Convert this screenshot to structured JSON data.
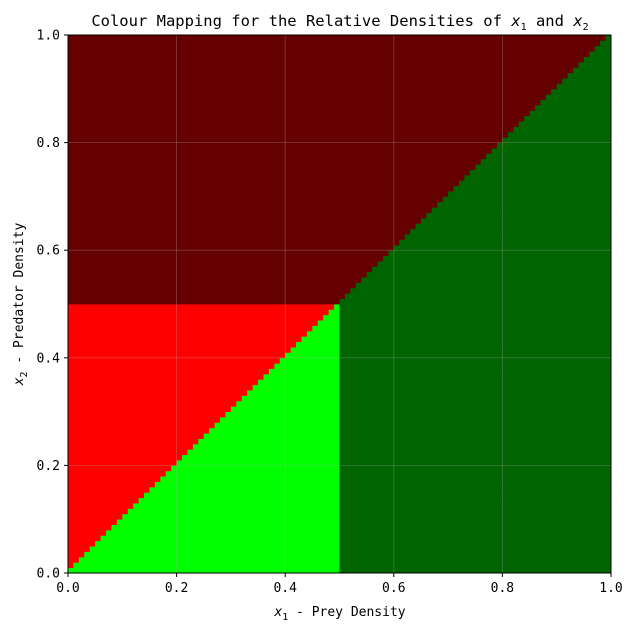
{
  "chart_data": {
    "type": "heatmap",
    "title_prefix": "Colour Mapping for the Relative Densities of ",
    "title_var1": "x",
    "title_var1_sub": "1",
    "title_mid": " and ",
    "title_var2": "x",
    "title_var2_sub": "2",
    "xlabel_var": "x",
    "xlabel_sub": "1",
    "xlabel_text": " - Prey Density",
    "ylabel_var": "x",
    "ylabel_sub": "2",
    "ylabel_text": " - Predator Density",
    "xlim": [
      0.0,
      1.0
    ],
    "ylim": [
      0.0,
      1.0
    ],
    "xticks": [
      "0.0",
      "0.2",
      "0.4",
      "0.6",
      "0.8",
      "1.0"
    ],
    "yticks": [
      "0.0",
      "0.2",
      "0.4",
      "0.6",
      "0.8",
      "1.0"
    ],
    "grid": true,
    "grid_resolution": 100,
    "regions": [
      {
        "rule": "x2 > x1",
        "color": "#650000"
      },
      {
        "rule": "x2 < 0.5 and x2 > x1",
        "color": "#ff0000"
      },
      {
        "rule": "x1 > x2",
        "color": "#006400"
      },
      {
        "rule": "x1 < 0.5 and x1 > x2",
        "color": "#00ff00"
      }
    ]
  }
}
